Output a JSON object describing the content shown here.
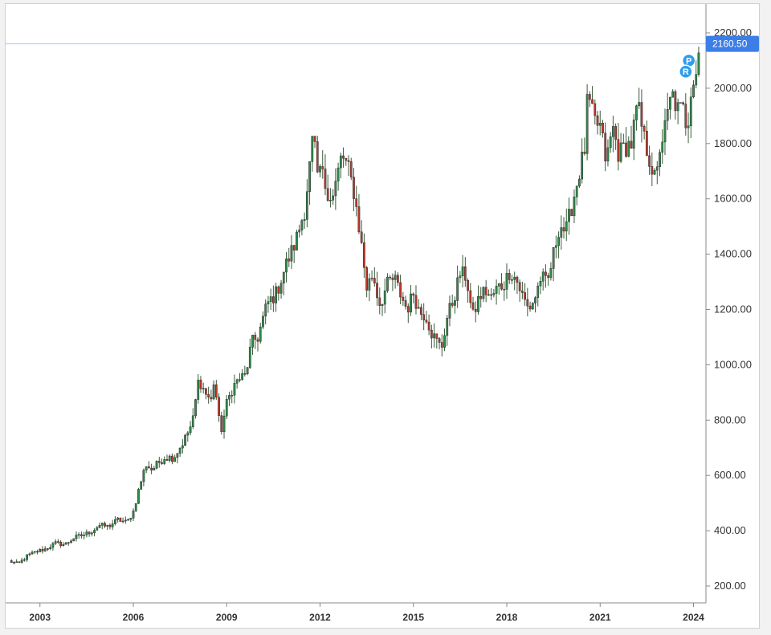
{
  "chart_data": {
    "type": "candlestick",
    "title": "",
    "xlabel": "",
    "ylabel": "",
    "ylim": [
      150,
      2250
    ],
    "x_range": [
      2002.0,
      2024.4
    ],
    "y_ticks": [
      "200.00",
      "400.00",
      "600.00",
      "800.00",
      "1000.00",
      "1200.00",
      "1400.00",
      "1600.00",
      "1800.00",
      "2000.00",
      "2200.00"
    ],
    "x_ticks": [
      "2003",
      "2006",
      "2009",
      "2012",
      "2015",
      "2018",
      "2021",
      "2024"
    ],
    "last_price": 2160.5,
    "last_price_label": "2160.50",
    "grid": false,
    "colors": {
      "up": "#2e8b4a",
      "down": "#c0392b",
      "wick": "#3a5a3a",
      "price_line": "#aac4f2",
      "badge": "#3d7ee6",
      "marker": "#2d9cf0"
    },
    "markers": [
      "P",
      "R"
    ],
    "anchors": [
      [
        2002.0,
        290
      ],
      [
        2002.3,
        280
      ],
      [
        2002.6,
        310
      ],
      [
        2002.9,
        325
      ],
      [
        2003.2,
        335
      ],
      [
        2003.5,
        355
      ],
      [
        2003.8,
        350
      ],
      [
        2004.1,
        375
      ],
      [
        2004.4,
        385
      ],
      [
        2004.7,
        400
      ],
      [
        2004.9,
        420
      ],
      [
        2005.2,
        415
      ],
      [
        2005.5,
        440
      ],
      [
        2005.8,
        430
      ],
      [
        2006.0,
        470
      ],
      [
        2006.2,
        560
      ],
      [
        2006.4,
        640
      ],
      [
        2006.6,
        620
      ],
      [
        2006.8,
        645
      ],
      [
        2007.0,
        665
      ],
      [
        2007.3,
        665
      ],
      [
        2007.6,
        720
      ],
      [
        2007.9,
        790
      ],
      [
        2008.1,
        950
      ],
      [
        2008.3,
        900
      ],
      [
        2008.5,
        870
      ],
      [
        2008.6,
        950
      ],
      [
        2008.8,
        750
      ],
      [
        2009.0,
        860
      ],
      [
        2009.2,
        920
      ],
      [
        2009.4,
        950
      ],
      [
        2009.6,
        960
      ],
      [
        2009.8,
        1080
      ],
      [
        2010.0,
        1100
      ],
      [
        2010.3,
        1220
      ],
      [
        2010.6,
        1260
      ],
      [
        2010.9,
        1360
      ],
      [
        2011.2,
        1440
      ],
      [
        2011.5,
        1560
      ],
      [
        2011.7,
        1750
      ],
      [
        2011.8,
        1850
      ],
      [
        2011.9,
        1650
      ],
      [
        2012.0,
        1710
      ],
      [
        2012.2,
        1640
      ],
      [
        2012.4,
        1600
      ],
      [
        2012.7,
        1760
      ],
      [
        2012.9,
        1710
      ],
      [
        2013.1,
        1620
      ],
      [
        2013.3,
        1460
      ],
      [
        2013.5,
        1280
      ],
      [
        2013.7,
        1330
      ],
      [
        2013.9,
        1220
      ],
      [
        2014.0,
        1240
      ],
      [
        2014.2,
        1300
      ],
      [
        2014.4,
        1310
      ],
      [
        2014.6,
        1250
      ],
      [
        2014.8,
        1200
      ],
      [
        2015.0,
        1260
      ],
      [
        2015.2,
        1190
      ],
      [
        2015.4,
        1180
      ],
      [
        2015.6,
        1110
      ],
      [
        2015.9,
        1060
      ],
      [
        2016.1,
        1180
      ],
      [
        2016.3,
        1240
      ],
      [
        2016.5,
        1330
      ],
      [
        2016.7,
        1320
      ],
      [
        2016.9,
        1170
      ],
      [
        2017.1,
        1240
      ],
      [
        2017.3,
        1270
      ],
      [
        2017.5,
        1240
      ],
      [
        2017.7,
        1280
      ],
      [
        2017.9,
        1290
      ],
      [
        2018.1,
        1340
      ],
      [
        2018.3,
        1310
      ],
      [
        2018.5,
        1250
      ],
      [
        2018.7,
        1200
      ],
      [
        2018.9,
        1240
      ],
      [
        2019.1,
        1320
      ],
      [
        2019.3,
        1290
      ],
      [
        2019.5,
        1400
      ],
      [
        2019.7,
        1510
      ],
      [
        2019.9,
        1480
      ],
      [
        2020.1,
        1580
      ],
      [
        2020.3,
        1680
      ],
      [
        2020.5,
        1780
      ],
      [
        2020.6,
        1970
      ],
      [
        2020.8,
        1880
      ],
      [
        2021.0,
        1860
      ],
      [
        2021.2,
        1730
      ],
      [
        2021.4,
        1860
      ],
      [
        2021.6,
        1760
      ],
      [
        2021.8,
        1790
      ],
      [
        2022.0,
        1800
      ],
      [
        2022.2,
        1940
      ],
      [
        2022.4,
        1820
      ],
      [
        2022.6,
        1740
      ],
      [
        2022.8,
        1650
      ],
      [
        2022.9,
        1780
      ],
      [
        2023.1,
        1860
      ],
      [
        2023.3,
        1980
      ],
      [
        2023.5,
        1920
      ],
      [
        2023.7,
        1920
      ],
      [
        2023.8,
        1840
      ],
      [
        2023.9,
        2000
      ],
      [
        2024.1,
        2070
      ],
      [
        2024.2,
        2160
      ]
    ]
  }
}
